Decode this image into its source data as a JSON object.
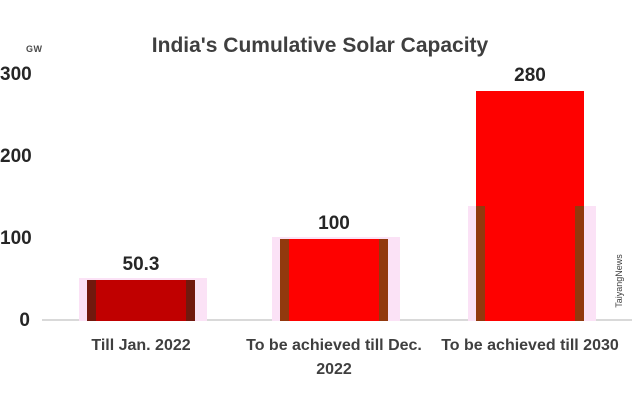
{
  "watermark": "TaiyangNews",
  "chart_data": {
    "type": "bar",
    "title": "India's Cumulative Solar Capacity",
    "ylabel": "GW",
    "xlabel": "",
    "ylim": [
      0,
      300
    ],
    "yticks": [
      0,
      100,
      200,
      300
    ],
    "grid": false,
    "legend": false,
    "categories": [
      "Till Jan. 2022",
      "To be achieved till Dec. 2022",
      "To be achieved till 2030"
    ],
    "category_lines": [
      [
        "Till Jan. 2022"
      ],
      [
        "To be achieved till Dec.",
        "2022"
      ],
      [
        "To be achieved till 2030"
      ]
    ],
    "values": [
      50.3,
      100,
      280
    ],
    "value_labels": [
      "50.3",
      "100",
      "280"
    ],
    "bar_colors": [
      "#C00000",
      "#FE0100",
      "#FE0100"
    ],
    "edge_colors": [
      "#71190E",
      "#92390E",
      "#92390E"
    ],
    "glow_color": "#FBE2F6",
    "glow_values": [
      50.3,
      100,
      140
    ],
    "axis_color": "#D9D9D9",
    "title_color": "#3F3F3F",
    "number_color": "#262626"
  }
}
